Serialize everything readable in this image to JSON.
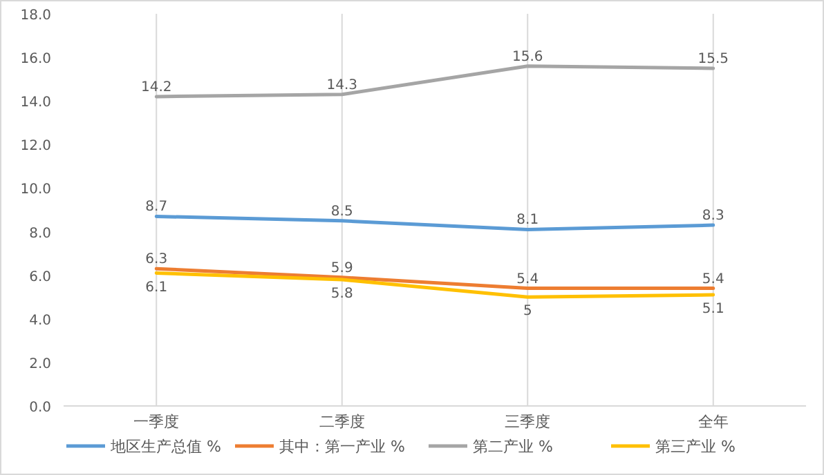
{
  "chart_data": {
    "type": "line",
    "categories": [
      "一季度",
      "二季度",
      "三季度",
      "全年"
    ],
    "series": [
      {
        "name": "地区生产总值 %",
        "color": "#5b9bd5",
        "values": [
          8.7,
          8.5,
          8.1,
          8.3
        ]
      },
      {
        "name": "其中：第一产业 %",
        "color": "#ed7d31",
        "values": [
          6.3,
          5.9,
          5.4,
          5.4
        ]
      },
      {
        "name": "第二产业 %",
        "color": "#a5a5a5",
        "values": [
          14.2,
          14.3,
          15.6,
          15.5
        ]
      },
      {
        "name": "第三产业 %",
        "color": "#ffc000",
        "values": [
          6.1,
          5.8,
          5,
          5.1
        ]
      }
    ],
    "ylim": [
      0,
      18
    ],
    "yticks": [
      {
        "value": 0,
        "label": "0.0"
      },
      {
        "value": 2,
        "label": "2.0"
      },
      {
        "value": 4,
        "label": "4.0"
      },
      {
        "value": 6,
        "label": "6.0"
      },
      {
        "value": 8,
        "label": "8.0"
      },
      {
        "value": 10,
        "label": "10.0"
      },
      {
        "value": 12,
        "label": "12.0"
      },
      {
        "value": 14,
        "label": "14.0"
      },
      {
        "value": 16,
        "label": "16.0"
      },
      {
        "value": 18,
        "label": "18.0"
      }
    ],
    "grid": "x",
    "legend": "bottom",
    "marker": "none",
    "line_style": "solid",
    "data_labels": true
  }
}
